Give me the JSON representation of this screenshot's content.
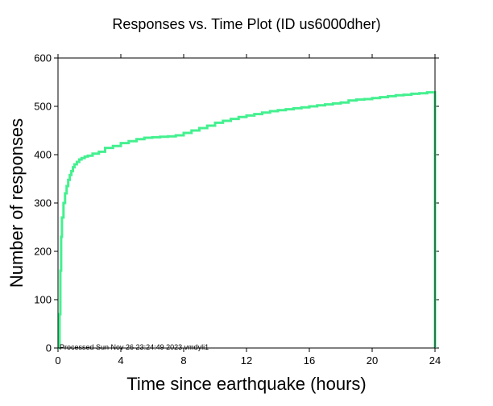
{
  "chart_data": {
    "type": "line",
    "title": "Responses vs. Time Plot (ID us6000dher)",
    "xlabel": "Time since earthquake (hours)",
    "ylabel": "Number of responses",
    "xlim": [
      0,
      24
    ],
    "ylim": [
      0,
      600
    ],
    "xticks": [
      0,
      4,
      8,
      12,
      16,
      20,
      24
    ],
    "yticks": [
      0,
      100,
      200,
      300,
      400,
      500,
      600
    ],
    "grid": false,
    "annotation": "Processed Sun Nov 26 23:24:49 2023 vmdyli1",
    "colors": {
      "line": "#44f08f",
      "frame": "#000000"
    },
    "series": [
      {
        "step": true,
        "x": [
          0,
          0.05,
          0.1,
          0.15,
          0.2,
          0.25,
          0.35,
          0.45,
          0.55,
          0.65,
          0.75,
          0.85,
          0.95,
          1.05,
          1.2,
          1.35,
          1.5,
          1.7,
          1.9,
          2.2,
          2.6,
          3.0,
          3.5,
          4.0,
          4.5,
          5.0,
          5.5,
          6.0,
          6.5,
          7.0,
          7.5,
          8.0,
          8.5,
          9.0,
          9.5,
          10.0,
          10.5,
          11.0,
          11.5,
          12.0,
          12.5,
          13.0,
          13.5,
          14.0,
          14.5,
          15.0,
          15.5,
          16.0,
          16.5,
          17.0,
          17.5,
          18.0,
          18.5,
          19.0,
          19.5,
          20.0,
          20.5,
          21.0,
          21.5,
          22.0,
          22.5,
          23.0,
          23.5,
          23.95,
          24.0
        ],
        "y": [
          0,
          10,
          70,
          160,
          230,
          270,
          300,
          320,
          335,
          348,
          358,
          366,
          374,
          380,
          385,
          390,
          393,
          396,
          398,
          402,
          406,
          414,
          418,
          424,
          428,
          432,
          435,
          436,
          437,
          438,
          440,
          445,
          450,
          455,
          460,
          466,
          470,
          474,
          478,
          481,
          484,
          487,
          490,
          492,
          494,
          496,
          498,
          500,
          502,
          504,
          506,
          508,
          512,
          514,
          515,
          517,
          519,
          521,
          523,
          524,
          526,
          527,
          529,
          529,
          0
        ]
      }
    ]
  }
}
